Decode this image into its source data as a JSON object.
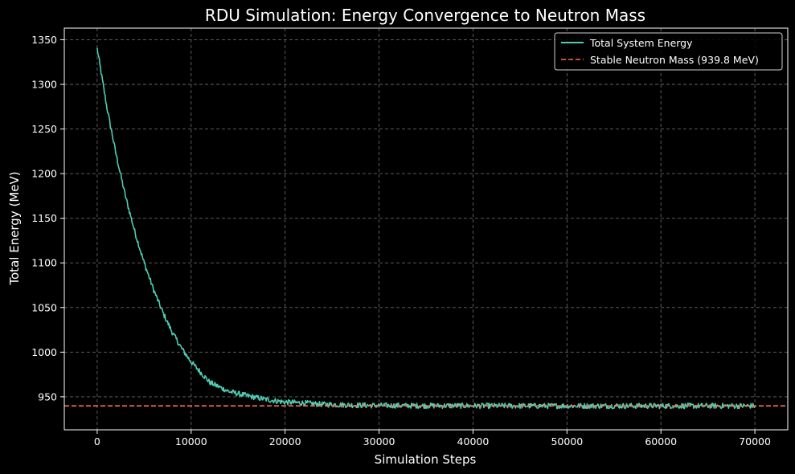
{
  "chart_data": {
    "type": "line",
    "title": "RDU Simulation: Energy Convergence to Neutron Mass",
    "xlabel": "Simulation Steps",
    "ylabel": "Total Energy (MeV)",
    "xlim": [
      -3500,
      73500
    ],
    "ylim": [
      913,
      1363
    ],
    "xticks": [
      0,
      10000,
      20000,
      30000,
      40000,
      50000,
      60000,
      70000
    ],
    "yticks": [
      950,
      1000,
      1050,
      1100,
      1150,
      1200,
      1250,
      1300,
      1350
    ],
    "grid": true,
    "legend_position": "top-right",
    "series": [
      {
        "name": "Total System Energy",
        "style": "solid",
        "color": "#4ecdb4",
        "x": [
          0,
          1000,
          2000,
          3000,
          4000,
          5000,
          6000,
          7000,
          8000,
          9000,
          10000,
          12000,
          14000,
          16000,
          18000,
          20000,
          22000,
          24000,
          26000,
          28000,
          30000,
          35000,
          40000,
          45000,
          50000,
          55000,
          60000,
          65000,
          70000
        ],
        "values": [
          1340,
          1276,
          1222,
          1175,
          1135,
          1100,
          1070,
          1044,
          1022,
          1004,
          989,
          966,
          956,
          951,
          947,
          944,
          943,
          941.5,
          941,
          940.5,
          940.2,
          940,
          939.9,
          939.8,
          939.8,
          939.8,
          939.8,
          939.8,
          939.8
        ],
        "noise_band": 3
      },
      {
        "name": "Stable Neutron Mass (939.8 MeV)",
        "style": "dashed",
        "color": "#ff6b4a",
        "hline": 939.8
      }
    ]
  }
}
